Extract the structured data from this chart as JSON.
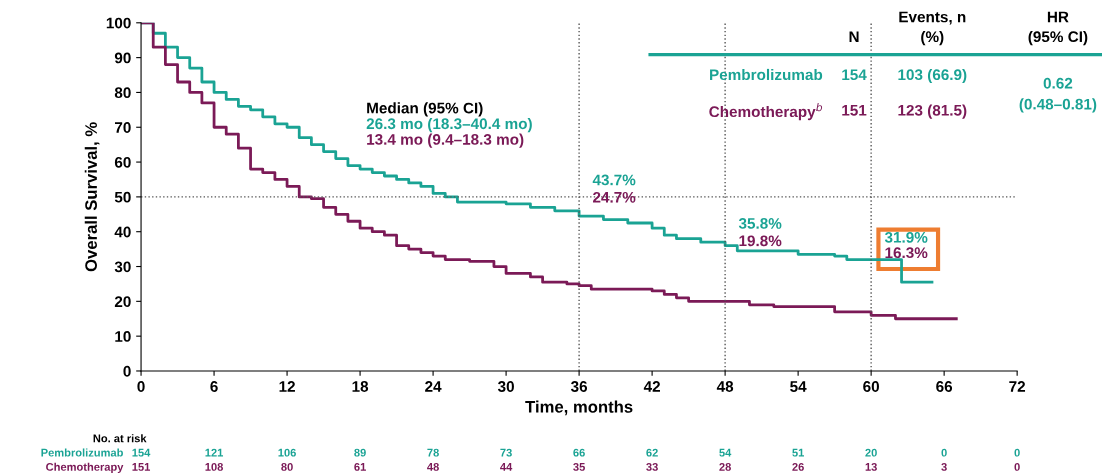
{
  "chart_data": {
    "type": "step",
    "xlabel": "Time, months",
    "ylabel": "Overall Survival, %",
    "xlim": [
      0,
      72
    ],
    "ylim": [
      0,
      100
    ],
    "xticks": [
      0,
      6,
      12,
      18,
      24,
      30,
      36,
      42,
      48,
      54,
      60,
      66,
      72
    ],
    "yticks": [
      0,
      10,
      20,
      30,
      40,
      50,
      60,
      70,
      80,
      90,
      100
    ],
    "grid": false,
    "legend": false,
    "marker": "none",
    "line_style": "solid",
    "series": [
      {
        "name": "Pembrolizumab",
        "color": "#1aa394",
        "x": [
          0,
          1,
          2,
          3,
          4,
          5,
          6,
          7,
          8,
          9,
          10,
          11,
          12,
          13,
          14,
          15,
          16,
          17,
          18,
          19,
          20,
          21,
          22,
          23,
          24,
          25,
          26,
          28,
          30,
          32,
          34,
          36,
          38,
          40,
          42,
          43,
          44,
          46,
          48,
          49,
          52,
          54,
          57,
          58,
          62,
          62.5,
          65
        ],
        "values": [
          100,
          97,
          93,
          90,
          87,
          83,
          80,
          78,
          76,
          75,
          73,
          71,
          70,
          67,
          65,
          63,
          61,
          59,
          58,
          57,
          56,
          55,
          54,
          53,
          51,
          50,
          48.5,
          48.5,
          48,
          47,
          46,
          44.5,
          43.5,
          42.5,
          41,
          39,
          38,
          37,
          36,
          34.5,
          34.5,
          33.5,
          33,
          32,
          32,
          25.5,
          25.5
        ]
      },
      {
        "name": "Chemotherapy$^{b}$",
        "color": "#7b1a57",
        "x": [
          0,
          1,
          2,
          3,
          4,
          5,
          6,
          7,
          8,
          9,
          10,
          11,
          12,
          13,
          14,
          15,
          16,
          17,
          18,
          19,
          20,
          21,
          22,
          23,
          24,
          25,
          27,
          28,
          29,
          30,
          32,
          33,
          35,
          36,
          37,
          40,
          42,
          43,
          44,
          45,
          48,
          50,
          52,
          56,
          57,
          59,
          60,
          61,
          62,
          67
        ],
        "values": [
          100,
          93,
          88,
          83,
          80,
          77,
          70,
          68,
          64,
          58,
          57,
          55,
          53,
          50,
          49.5,
          47,
          45,
          43,
          41,
          40,
          39,
          36,
          35,
          34,
          33,
          32,
          31.5,
          31.5,
          30,
          28,
          27,
          25.5,
          25,
          24.5,
          23.5,
          23.5,
          23,
          22,
          21,
          20,
          20,
          19,
          18.5,
          18.5,
          17,
          17,
          16,
          16,
          15,
          15
        ]
      }
    ],
    "ref_lines": [
      {
        "axis": "y",
        "value": 50,
        "line_style": "dotted",
        "color": "#555555"
      },
      {
        "axis": "x",
        "value": 36,
        "line_style": "dotted",
        "color": "#555555"
      },
      {
        "axis": "x",
        "value": 48,
        "line_style": "dotted",
        "color": "#555555"
      },
      {
        "axis": "x",
        "value": 60,
        "line_style": "dotted",
        "color": "#555555"
      }
    ],
    "annotations": [
      "Median (95% CI)",
      "26.3 mo (18.3–40.4 mo)",
      "13.4 mo (9.4–18.3 mo)",
      "43.7%",
      "24.7%",
      "35.8%",
      "19.8%",
      "31.9%",
      "16.3%",
      "N",
      "Events, n\n(%)",
      "HR\n(95% CI)",
      "154",
      "103 (66.9)",
      "0.62\n(0.48–0.81)",
      "151",
      "123 (81.5)",
      "No. at risk",
      "154",
      "121",
      "106",
      "89",
      "78",
      "73",
      "66",
      "62",
      "54",
      "51",
      "20",
      "0",
      "0",
      "151",
      "108",
      "80",
      "61",
      "48",
      "44",
      "35",
      "33",
      "28",
      "26",
      "13",
      "3",
      "0",
      "Pembrolizumab",
      "Chemotherapy"
    ]
  }
}
